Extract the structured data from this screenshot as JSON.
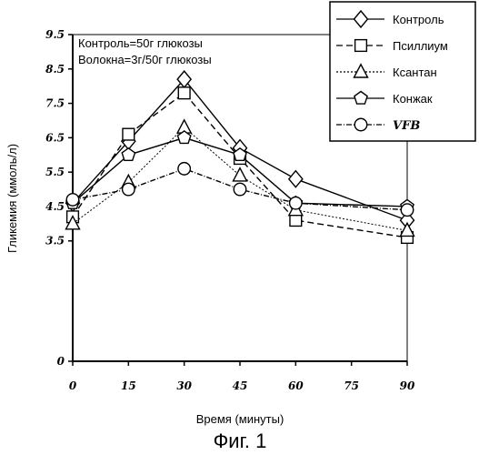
{
  "chart_data": {
    "type": "line",
    "xlabel": "Время (минуты)",
    "ylabel": "Гликемия (ммоль/л)",
    "caption": "Фиг. 1",
    "annotations": [
      "Контроль=50г глюкозы",
      "Волокна=3г/50г глюкозы"
    ],
    "xlim": [
      0,
      90
    ],
    "ylim": [
      0,
      9.5
    ],
    "x_ticks": [
      "0",
      "15",
      "30",
      "45",
      "60",
      "75",
      "90"
    ],
    "y_ticks": [
      "0",
      "3.5",
      "4.5",
      "5.5",
      "6.5",
      "7.5",
      "8.5",
      "9.5"
    ],
    "x": [
      0,
      15,
      30,
      45,
      60,
      90
    ],
    "legend_position": "top-right",
    "series": [
      {
        "name": "Контроль",
        "marker": "diamond",
        "dash": "",
        "values": [
          4.6,
          6.4,
          8.2,
          6.2,
          5.3,
          4.1
        ]
      },
      {
        "name": "Псиллиум",
        "marker": "square",
        "dash": "7,4",
        "values": [
          4.2,
          6.6,
          7.8,
          5.9,
          4.1,
          3.6
        ]
      },
      {
        "name": "Ксантан",
        "marker": "triangle",
        "dash": "2,2",
        "values": [
          4.0,
          5.2,
          6.8,
          5.4,
          4.4,
          3.8
        ]
      },
      {
        "name": "Конжак",
        "marker": "pentagon",
        "dash": "",
        "values": [
          4.6,
          6.0,
          6.5,
          6.0,
          4.6,
          4.5
        ]
      },
      {
        "name": "VFB",
        "marker": "circle",
        "dash": "6,2,1,2",
        "values": [
          4.7,
          5.0,
          5.6,
          5.0,
          4.6,
          4.4
        ]
      }
    ]
  }
}
